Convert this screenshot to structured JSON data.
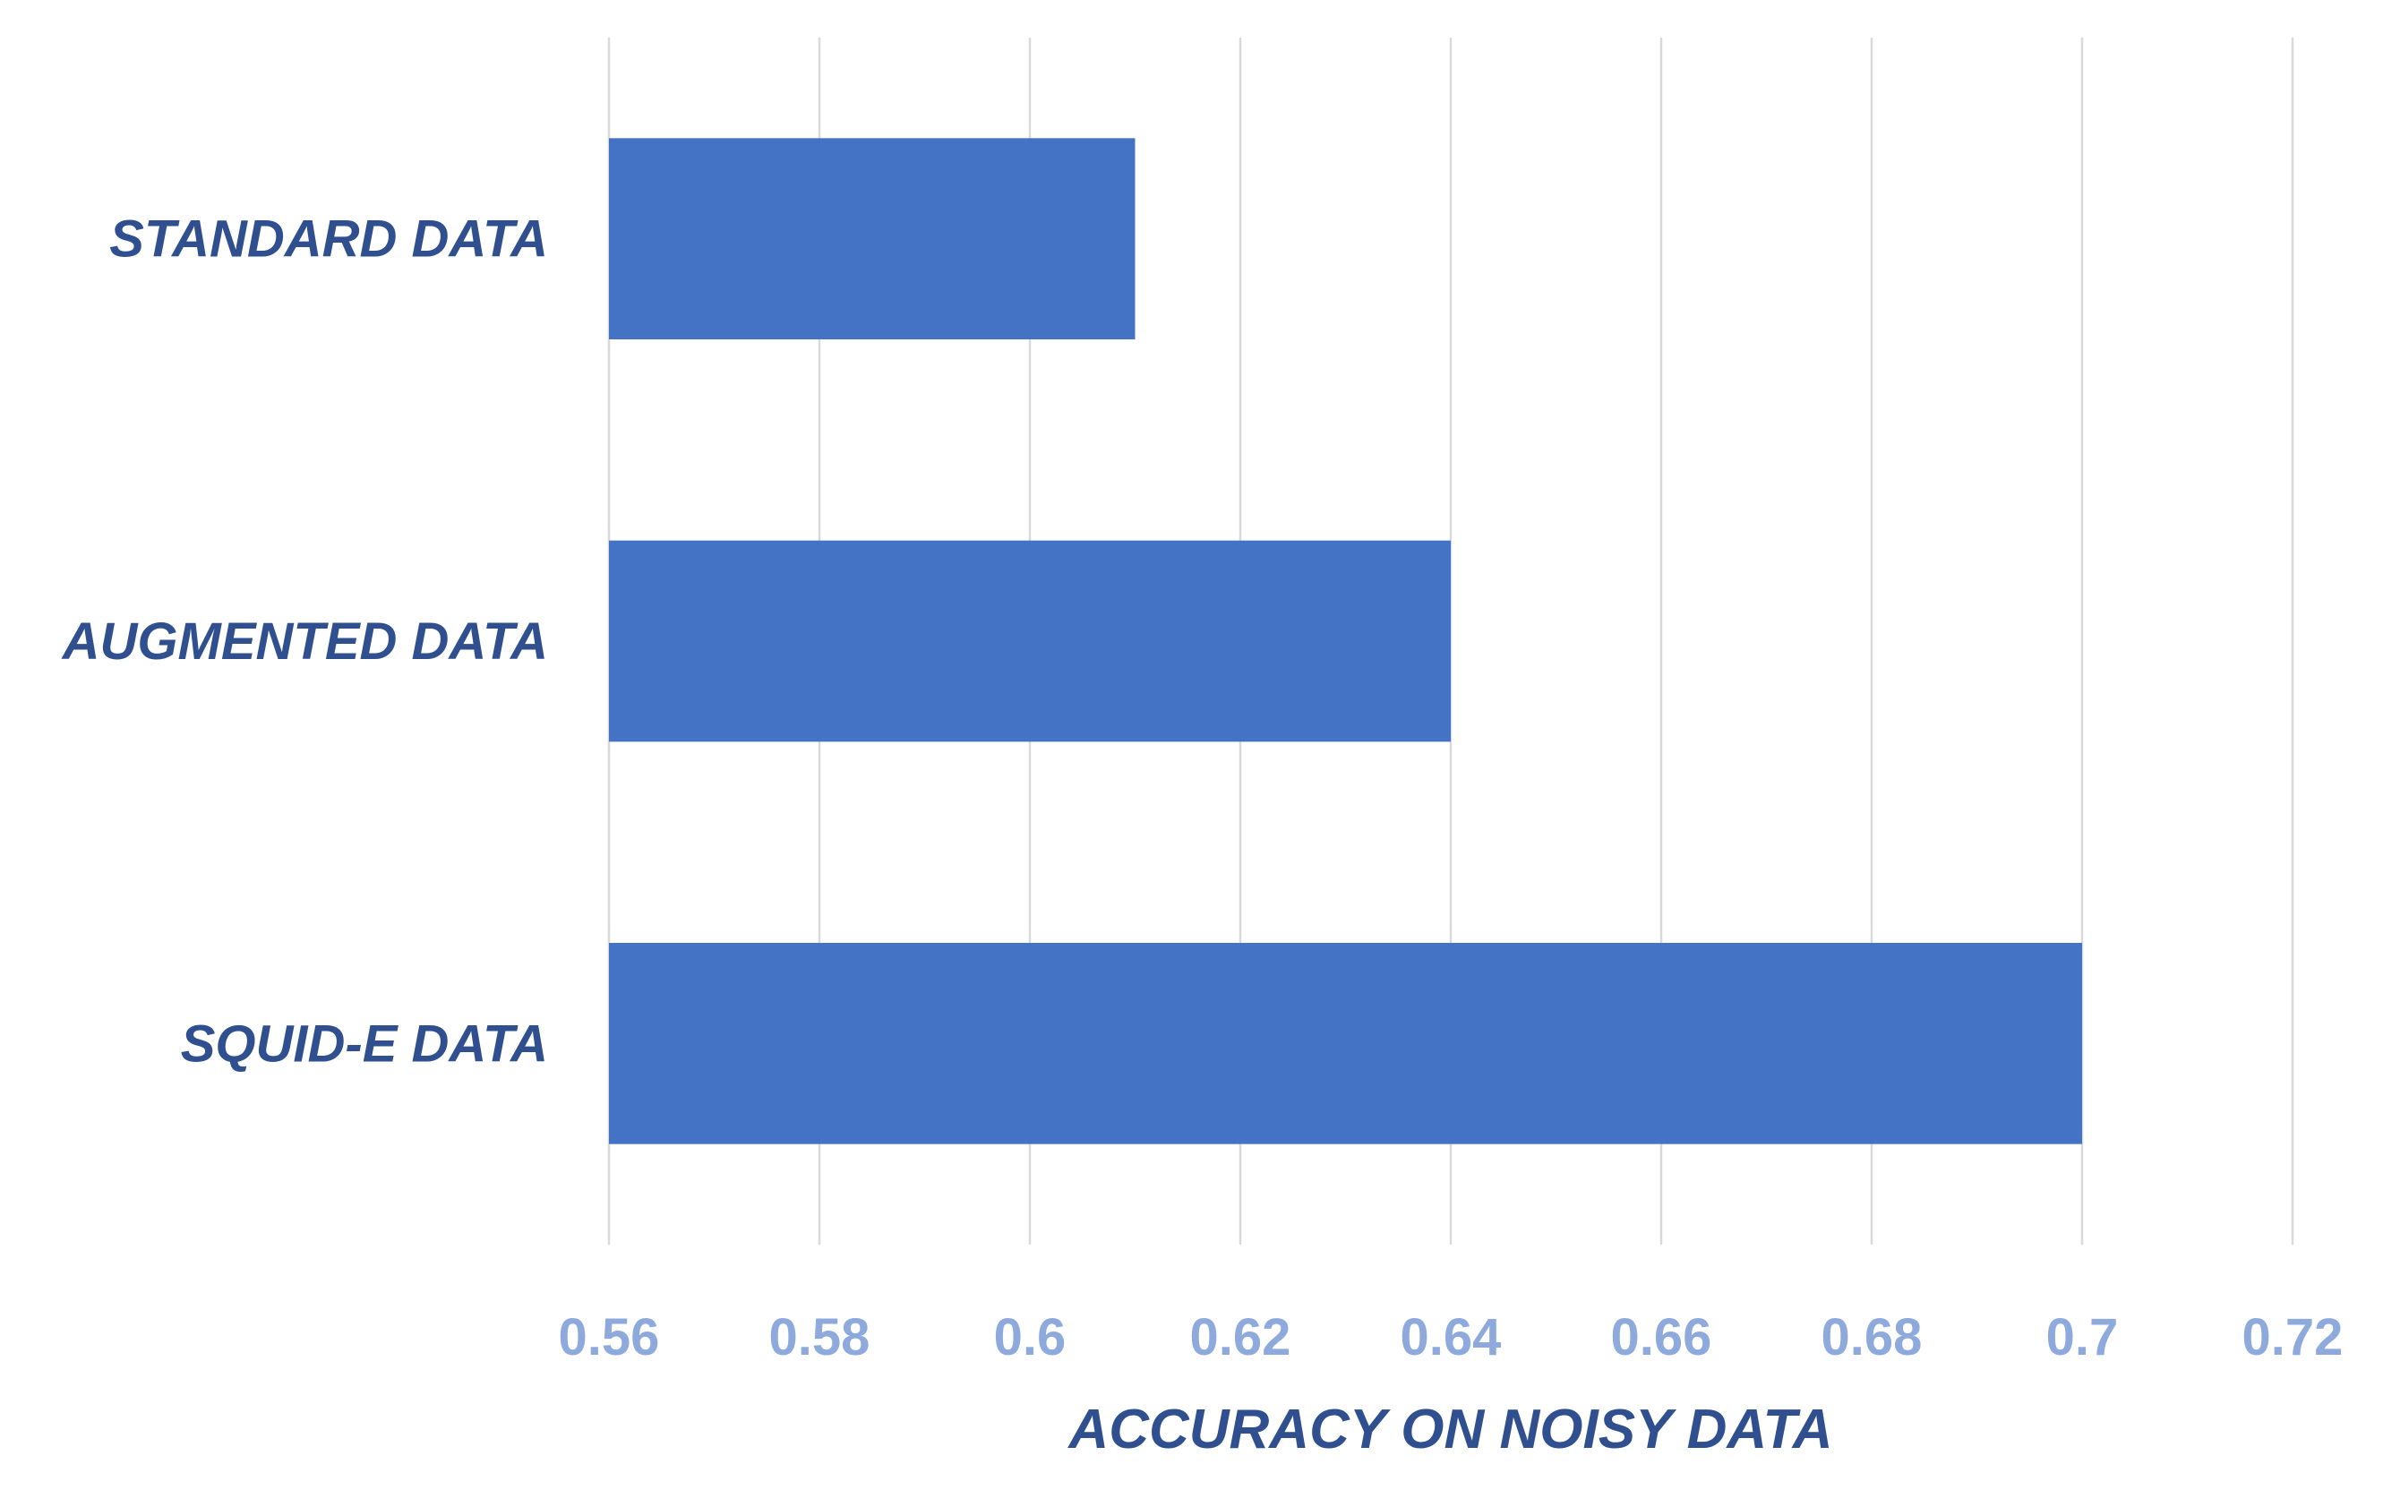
{
  "chart_data": {
    "type": "bar",
    "orientation": "horizontal",
    "categories": [
      "STANDARD DATA",
      "AUGMENTED DATA",
      "SQUID-E DATA"
    ],
    "values": [
      0.61,
      0.64,
      0.7
    ],
    "title": "",
    "xlabel": "ACCURACY ON NOISY DATA",
    "ylabel": "",
    "xlim": [
      0.56,
      0.72
    ],
    "x_ticks": [
      "0.56",
      "0.58",
      "0.6",
      "0.62",
      "0.64",
      "0.66",
      "0.68",
      "0.7",
      "0.72"
    ],
    "grid": "vertical",
    "legend": "none",
    "colors": {
      "bar": "#4472C4",
      "category_label": "#2F4F8F",
      "tick_label": "#8EA9DB",
      "axis_title": "#2F4F8F",
      "gridline": "#D9D9D9"
    }
  }
}
